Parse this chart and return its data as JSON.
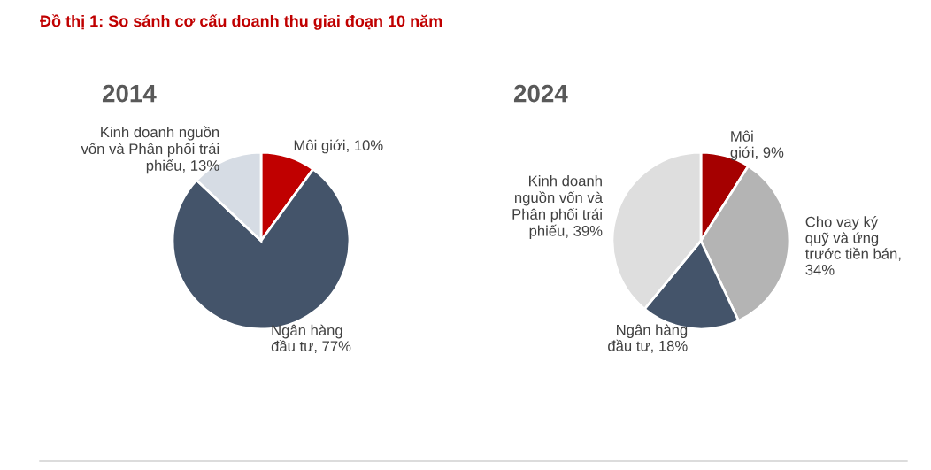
{
  "chart_data": [
    {
      "type": "pie",
      "title": "2014",
      "annotations": [
        "Đồ thị 1: So sánh cơ cấu doanh thu giai đoạn 10 năm"
      ],
      "categories": [
        "Môi giới, 10%",
        "Ngân hàng\nđầu tư, 77%",
        "Kinh doanh nguồn\nvốn và Phân phối trái\nphiếu, 13%"
      ],
      "values": [
        10,
        77,
        13
      ],
      "colors": [
        "#c00000",
        "#44546a",
        "#d6dce4"
      ]
    },
    {
      "type": "pie",
      "title": "2024",
      "categories": [
        "Môi\ngiới, 9%",
        "Cho vay ký\nquỹ và ứng\ntrước tiền bán,\n34%",
        "Ngân hàng\nđầu tư, 18%",
        "Kinh doanh\nnguồn vốn và\nPhân phối trái\nphiếu, 39%"
      ],
      "values": [
        9,
        34,
        18,
        39
      ],
      "colors": [
        "#a50000",
        "#b4b4b4",
        "#44546a",
        "#dedede"
      ]
    }
  ]
}
